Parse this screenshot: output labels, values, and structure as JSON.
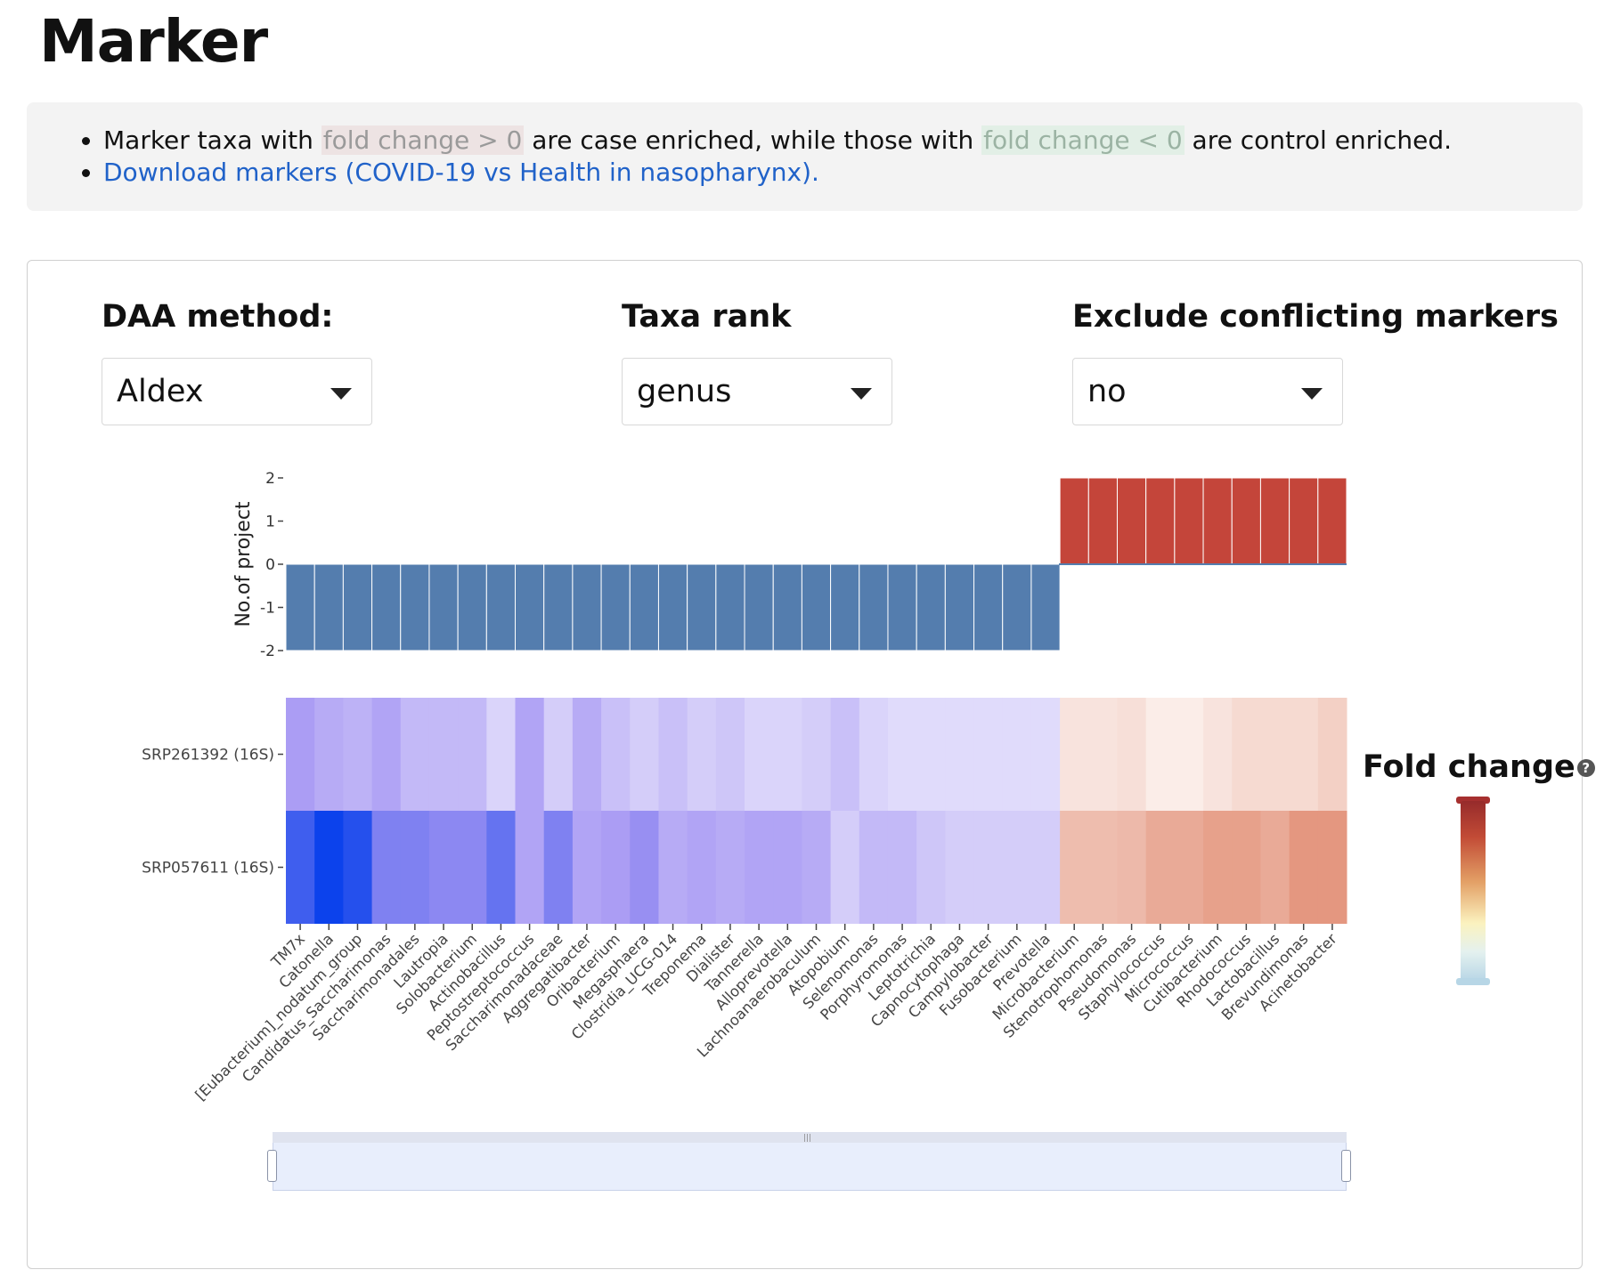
{
  "page_title": "Marker",
  "info": {
    "bullet1": {
      "text_before": "Marker taxa with ",
      "highlight_case": "fold change > 0",
      "text_middle": " are case enriched, while those with ",
      "highlight_control": "fold change < 0",
      "text_after": " are control enriched."
    },
    "download_link": "Download markers (COVID-19 vs Health in nasopharynx)."
  },
  "controls": {
    "daa_method": {
      "label": "DAA method:",
      "value": "Aldex"
    },
    "taxa_rank": {
      "label": "Taxa rank",
      "value": "genus"
    },
    "exclude_conflicting": {
      "label": "Exclude conflicting markers",
      "value": "no"
    }
  },
  "legend": {
    "title": "Fold change",
    "help_icon": "help-icon"
  },
  "colors": {
    "control_bar": "#547dae",
    "case_bar": "#c4453a"
  },
  "chart_data": {
    "type": "bar+heatmap",
    "bar": {
      "ylabel": "No.of project",
      "yticks": [
        "2",
        "1",
        "0",
        "-1",
        "-2"
      ],
      "ylim": [
        -2,
        2
      ]
    },
    "heatmap": {
      "rows": [
        "SRP261392 (16S)",
        "SRP057611 (16S)"
      ]
    },
    "taxa": [
      {
        "name": "TM7x",
        "count": -2,
        "fc": [
          -0.55,
          -1.0
        ]
      },
      {
        "name": "Catonella",
        "count": -2,
        "fc": [
          -0.45,
          -1.2
        ]
      },
      {
        "name": "[Eubacterium]_nodatum_group",
        "count": -2,
        "fc": [
          -0.4,
          -1.1
        ]
      },
      {
        "name": "Candidatus_Saccharimonas",
        "count": -2,
        "fc": [
          -0.5,
          -0.75
        ]
      },
      {
        "name": "Saccharimonadales",
        "count": -2,
        "fc": [
          -0.35,
          -0.75
        ]
      },
      {
        "name": "Lautropia",
        "count": -2,
        "fc": [
          -0.35,
          -0.7
        ]
      },
      {
        "name": "Solobacterium",
        "count": -2,
        "fc": [
          -0.35,
          -0.7
        ]
      },
      {
        "name": "Actinobacillus",
        "count": -2,
        "fc": [
          -0.15,
          -0.85
        ]
      },
      {
        "name": "Peptostreptococcus",
        "count": -2,
        "fc": [
          -0.5,
          -0.5
        ]
      },
      {
        "name": "Saccharimonadaceae",
        "count": -2,
        "fc": [
          -0.2,
          -0.75
        ]
      },
      {
        "name": "Aggregatibacter",
        "count": -2,
        "fc": [
          -0.45,
          -0.5
        ]
      },
      {
        "name": "Oribacterium",
        "count": -2,
        "fc": [
          -0.3,
          -0.55
        ]
      },
      {
        "name": "Megasphaera",
        "count": -2,
        "fc": [
          -0.2,
          -0.65
        ]
      },
      {
        "name": "Clostridia_UCG-014",
        "count": -2,
        "fc": [
          -0.3,
          -0.45
        ]
      },
      {
        "name": "Treponema",
        "count": -2,
        "fc": [
          -0.2,
          -0.5
        ]
      },
      {
        "name": "Dialister",
        "count": -2,
        "fc": [
          -0.25,
          -0.45
        ]
      },
      {
        "name": "Tannerella",
        "count": -2,
        "fc": [
          -0.15,
          -0.5
        ]
      },
      {
        "name": "Alloprevotella",
        "count": -2,
        "fc": [
          -0.15,
          -0.5
        ]
      },
      {
        "name": "Lachnoanaerobaculum",
        "count": -2,
        "fc": [
          -0.2,
          -0.45
        ]
      },
      {
        "name": "Atopobium",
        "count": -2,
        "fc": [
          -0.3,
          -0.2
        ]
      },
      {
        "name": "Selenomonas",
        "count": -2,
        "fc": [
          -0.15,
          -0.35
        ]
      },
      {
        "name": "Porphyromonas",
        "count": -2,
        "fc": [
          -0.1,
          -0.35
        ]
      },
      {
        "name": "Leptotrichia",
        "count": -2,
        "fc": [
          -0.1,
          -0.25
        ]
      },
      {
        "name": "Capnocytophaga",
        "count": -2,
        "fc": [
          -0.1,
          -0.2
        ]
      },
      {
        "name": "Campylobacter",
        "count": -2,
        "fc": [
          -0.1,
          -0.2
        ]
      },
      {
        "name": "Fusobacterium",
        "count": -2,
        "fc": [
          -0.1,
          -0.2
        ]
      },
      {
        "name": "Prevotella",
        "count": -2,
        "fc": [
          -0.1,
          -0.2
        ]
      },
      {
        "name": "Microbacterium",
        "count": 2,
        "fc": [
          0.1,
          0.3
        ]
      },
      {
        "name": "Stenotrophomonas",
        "count": 2,
        "fc": [
          0.1,
          0.3
        ]
      },
      {
        "name": "Pseudomonas",
        "count": 2,
        "fc": [
          0.12,
          0.32
        ]
      },
      {
        "name": "Staphylococcus",
        "count": 2,
        "fc": [
          0.05,
          0.4
        ]
      },
      {
        "name": "Micrococcus",
        "count": 2,
        "fc": [
          0.05,
          0.4
        ]
      },
      {
        "name": "Cutibacterium",
        "count": 2,
        "fc": [
          0.1,
          0.45
        ]
      },
      {
        "name": "Rhodococcus",
        "count": 2,
        "fc": [
          0.15,
          0.45
        ]
      },
      {
        "name": "Lactobacillus",
        "count": 2,
        "fc": [
          0.15,
          0.4
        ]
      },
      {
        "name": "Brevundimonas",
        "count": 2,
        "fc": [
          0.15,
          0.5
        ]
      },
      {
        "name": "Acinetobacter",
        "count": 2,
        "fc": [
          0.2,
          0.5
        ]
      }
    ]
  }
}
